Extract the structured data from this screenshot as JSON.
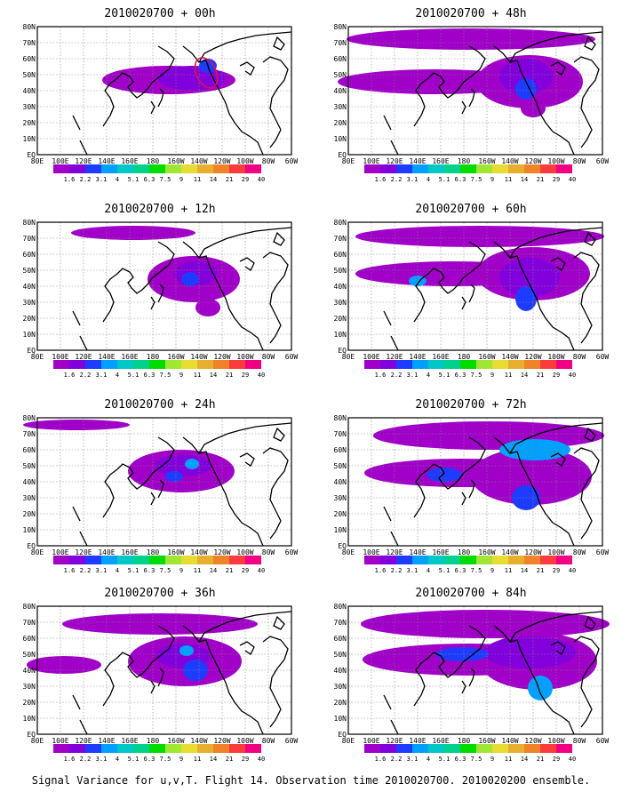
{
  "figure": {
    "caption": "Signal Variance for u,v,T. Flight 14. Observation time 2010020700. 2010020200 ensemble."
  },
  "axes": {
    "lon_labels": [
      "80E",
      "100E",
      "120E",
      "140E",
      "160E",
      "180",
      "160W",
      "140W",
      "120W",
      "100W",
      "80W",
      "60W"
    ],
    "lat_labels": [
      "EQ",
      "10N",
      "20N",
      "30N",
      "40N",
      "50N",
      "60N",
      "70N",
      "80N"
    ]
  },
  "colorbar": {
    "levels": [
      "1.6",
      "2.2",
      "3.1",
      "4",
      "5.1",
      "6.3",
      "7.5",
      "9",
      "11",
      "14",
      "21",
      "29",
      "40"
    ],
    "colors": [
      "#a000c8",
      "#8200dc",
      "#1e3cff",
      "#00a0ff",
      "#00c8c8",
      "#00d28c",
      "#00dc00",
      "#a0e632",
      "#e6dc32",
      "#e6af2d",
      "#f08228",
      "#fa3c3c",
      "#f00082"
    ]
  },
  "panels": [
    {
      "id": "p00",
      "title": "2010020700 + 00h"
    },
    {
      "id": "p12",
      "title": "2010020700 + 12h"
    },
    {
      "id": "p24",
      "title": "2010020700 + 24h"
    },
    {
      "id": "p36",
      "title": "2010020700 + 36h"
    },
    {
      "id": "p48",
      "title": "2010020700 + 48h"
    },
    {
      "id": "p60",
      "title": "2010020700 + 60h"
    },
    {
      "id": "p72",
      "title": "2010020700 + 72h"
    },
    {
      "id": "p84",
      "title": "2010020700 + 84h"
    }
  ]
}
